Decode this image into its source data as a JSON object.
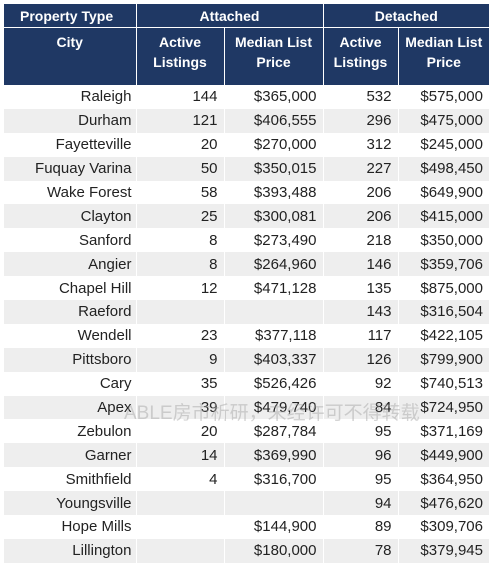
{
  "header": {
    "property_type": "Property Type",
    "attached": "Attached",
    "detached": "Detached",
    "city": "City",
    "active_listings_1": "Active",
    "active_listings_2": "Listings",
    "median_list_1": "Median List",
    "median_list_2": "Price"
  },
  "rows": [
    {
      "city": "Raleigh",
      "att_active": "144",
      "att_price": "$365,000",
      "det_active": "532",
      "det_price": "$575,000"
    },
    {
      "city": "Durham",
      "att_active": "121",
      "att_price": "$406,555",
      "det_active": "296",
      "det_price": "$475,000"
    },
    {
      "city": "Fayetteville",
      "att_active": "20",
      "att_price": "$270,000",
      "det_active": "312",
      "det_price": "$245,000"
    },
    {
      "city": "Fuquay Varina",
      "att_active": "50",
      "att_price": "$350,015",
      "det_active": "227",
      "det_price": "$498,450"
    },
    {
      "city": "Wake Forest",
      "att_active": "58",
      "att_price": "$393,488",
      "det_active": "206",
      "det_price": "$649,900"
    },
    {
      "city": "Clayton",
      "att_active": "25",
      "att_price": "$300,081",
      "det_active": "206",
      "det_price": "$415,000"
    },
    {
      "city": "Sanford",
      "att_active": "8",
      "att_price": "$273,490",
      "det_active": "218",
      "det_price": "$350,000"
    },
    {
      "city": "Angier",
      "att_active": "8",
      "att_price": "$264,960",
      "det_active": "146",
      "det_price": "$359,706"
    },
    {
      "city": "Chapel Hill",
      "att_active": "12",
      "att_price": "$471,128",
      "det_active": "135",
      "det_price": "$875,000"
    },
    {
      "city": "Raeford",
      "att_active": "",
      "att_price": "",
      "det_active": "143",
      "det_price": "$316,504"
    },
    {
      "city": "Wendell",
      "att_active": "23",
      "att_price": "$377,118",
      "det_active": "117",
      "det_price": "$422,105"
    },
    {
      "city": "Pittsboro",
      "att_active": "9",
      "att_price": "$403,337",
      "det_active": "126",
      "det_price": "$799,900"
    },
    {
      "city": "Cary",
      "att_active": "35",
      "att_price": "$526,426",
      "det_active": "92",
      "det_price": "$740,513"
    },
    {
      "city": "Apex",
      "att_active": "39",
      "att_price": "$479,740",
      "det_active": "84",
      "det_price": "$724,950"
    },
    {
      "city": "Zebulon",
      "att_active": "20",
      "att_price": "$287,784",
      "det_active": "95",
      "det_price": "$371,169"
    },
    {
      "city": "Garner",
      "att_active": "14",
      "att_price": "$369,990",
      "det_active": "96",
      "det_price": "$449,900"
    },
    {
      "city": "Smithfield",
      "att_active": "4",
      "att_price": "$316,700",
      "det_active": "95",
      "det_price": "$364,950"
    },
    {
      "city": "Youngsville",
      "att_active": "",
      "att_price": "",
      "det_active": "94",
      "det_price": "$476,620"
    },
    {
      "city": "Hope Mills",
      "att_active": "",
      "att_price": "$144,900",
      "det_active": "89",
      "det_price": "$309,706"
    },
    {
      "city": "Lillington",
      "att_active": "",
      "att_price": "$180,000",
      "det_active": "78",
      "det_price": "$379,945"
    }
  ],
  "watermark": "ABLE房市析研，未经许可不得转载",
  "colors": {
    "header_bg": "#1f3864",
    "stripe": "#eeeeee"
  }
}
